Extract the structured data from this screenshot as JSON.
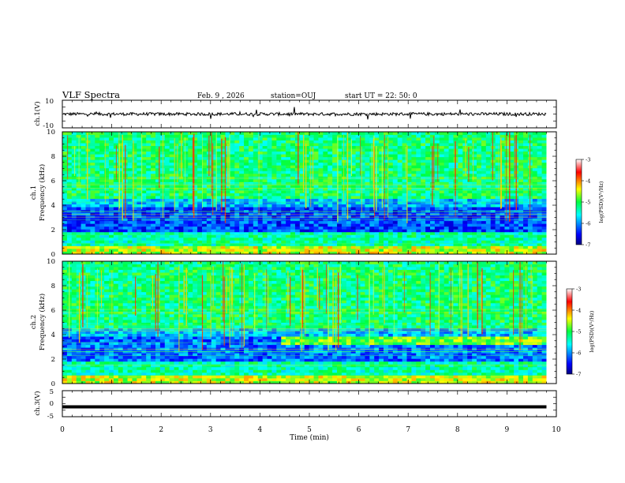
{
  "header": {
    "title": "VLF Spectra",
    "date": "Feb. 9 , 2026",
    "station": "station=OUJ",
    "start": "start UT = 22: 50: 0"
  },
  "chart_data": [
    {
      "type": "line",
      "name": "ch1-waveform",
      "ylabel": "ch.1(V)",
      "ylim": [
        -10,
        10
      ],
      "yticks": [
        "10",
        "-10"
      ],
      "baseline": 0
    },
    {
      "type": "heatmap",
      "name": "ch1-spectrogram",
      "ylabel_line1": "ch.1",
      "ylabel_line2": "Frequency (kHz)",
      "ylim": [
        0,
        10
      ],
      "yticks": [
        "0",
        "2",
        "4",
        "6",
        "8",
        "10"
      ],
      "xlim": [
        0,
        10
      ],
      "colorbar": {
        "label": "log(PSD)(V²/Hz)",
        "range": [
          -7,
          -3
        ],
        "ticks": [
          "-3",
          "-4",
          "-5",
          "-6",
          "-7"
        ]
      }
    },
    {
      "type": "heatmap",
      "name": "ch2-spectrogram",
      "ylabel_line1": "ch.2",
      "ylabel_line2": "Frequency (kHz)",
      "ylim": [
        0,
        10
      ],
      "yticks": [
        "0",
        "2",
        "4",
        "6",
        "8",
        "10"
      ],
      "xlim": [
        0,
        10
      ],
      "colorbar": {
        "label": "log(PSD)(V²/Hz)",
        "range": [
          -7,
          -3
        ],
        "ticks": [
          "-3",
          "-4",
          "-5",
          "-6",
          "-7"
        ]
      }
    },
    {
      "type": "line",
      "name": "ch3-waveform",
      "ylabel": "ch.3(V)",
      "ylim": [
        -5,
        5
      ],
      "yticks": [
        "5",
        "0",
        "-5"
      ],
      "value": -1.2
    }
  ],
  "xaxis": {
    "label": "Time (min)",
    "range": [
      0,
      10
    ],
    "ticks": [
      "0",
      "1",
      "2",
      "3",
      "4",
      "5",
      "6",
      "7",
      "8",
      "9",
      "10"
    ],
    "data_end": 9.8
  }
}
